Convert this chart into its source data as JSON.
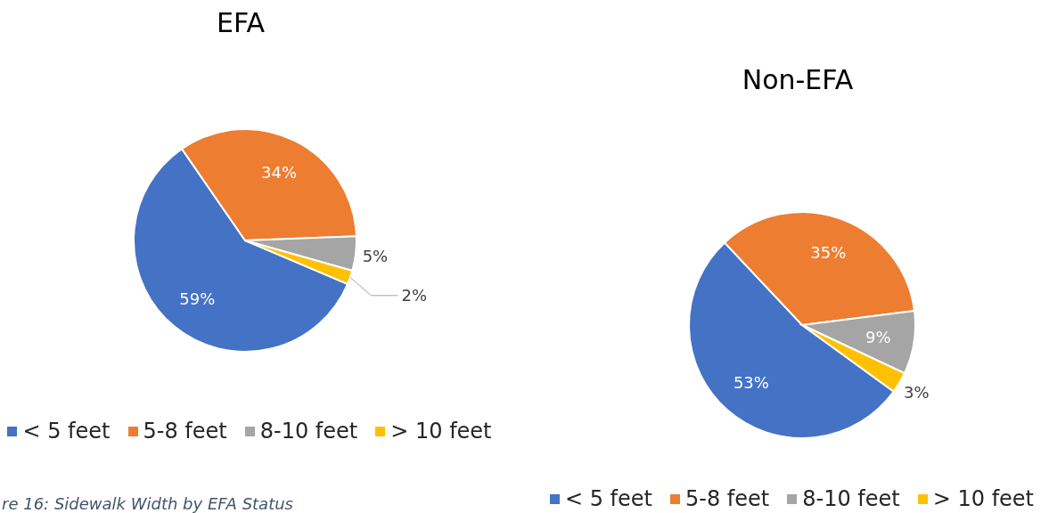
{
  "chart_data": [
    {
      "type": "pie",
      "title": "EFA",
      "categories": [
        "< 5 feet",
        "5-8 feet",
        "8-10 feet",
        "> 10 feet"
      ],
      "values": [
        59,
        34,
        5,
        2
      ],
      "value_labels": [
        "59%",
        "34%",
        "5%",
        "2%"
      ],
      "colors": [
        "#4472c4",
        "#ed7d31",
        "#a5a5a5",
        "#ffc000"
      ],
      "legend": "bottom",
      "annotations": [
        "re 16: Sidewalk Width by EFA Status"
      ]
    },
    {
      "type": "pie",
      "title": "Non-EFA",
      "categories": [
        "< 5 feet",
        "5-8 feet",
        "8-10 feet",
        "> 10 feet"
      ],
      "values": [
        53,
        35,
        9,
        3
      ],
      "value_labels": [
        "53%",
        "35%",
        "9%",
        "3%"
      ],
      "colors": [
        "#4472c4",
        "#ed7d31",
        "#a5a5a5",
        "#ffc000"
      ],
      "legend": "bottom"
    }
  ]
}
